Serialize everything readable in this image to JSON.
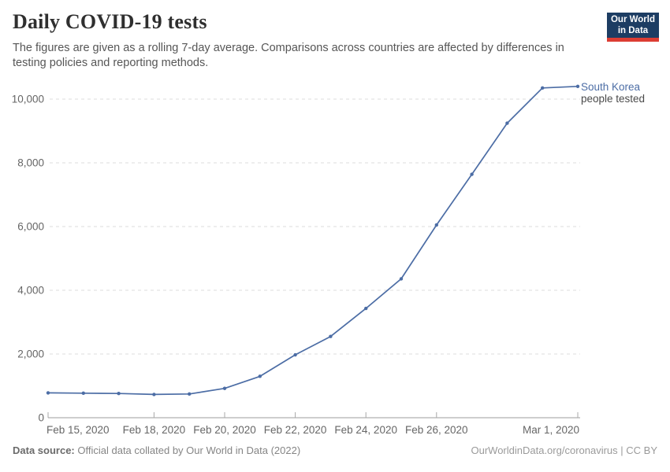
{
  "header": {
    "title": "Daily COVID-19 tests",
    "subtitle_lines": [
      "The figures are given as a rolling 7-day average. Comparisons across countries are affected by differences in",
      "testing policies and reporting methods."
    ],
    "logo": {
      "line1": "Our World",
      "line2": "in Data"
    }
  },
  "colors": {
    "line": "#4c6da5",
    "series_label": "#4c6da5",
    "series_sublabel": "#4a4a4a",
    "grid": "#dcdcdc",
    "axis": "#9e9e9e",
    "tick": "#a8a8a8",
    "tick_label": "#666666",
    "logo_bg": "#1d3d63",
    "logo_stripe": "#dc3d33"
  },
  "chart_data": {
    "type": "line",
    "title": "Daily COVID-19 tests",
    "x": [
      "Feb 15, 2020",
      "Feb 16, 2020",
      "Feb 17, 2020",
      "Feb 18, 2020",
      "Feb 19, 2020",
      "Feb 20, 2020",
      "Feb 21, 2020",
      "Feb 22, 2020",
      "Feb 23, 2020",
      "Feb 24, 2020",
      "Feb 25, 2020",
      "Feb 26, 2020",
      "Feb 27, 2020",
      "Feb 28, 2020",
      "Feb 29, 2020",
      "Mar 1, 2020"
    ],
    "series": [
      {
        "name": "South Korea",
        "sublabel": "people tested",
        "values": [
          780,
          770,
          760,
          730,
          745,
          920,
          1300,
          1975,
          2550,
          3430,
          4360,
          6050,
          7640,
          9245,
          10350,
          10400
        ]
      }
    ],
    "x_ticks": [
      {
        "index": 0,
        "label": "Feb 15, 2020"
      },
      {
        "index": 3,
        "label": "Feb 18, 2020"
      },
      {
        "index": 5,
        "label": "Feb 20, 2020"
      },
      {
        "index": 7,
        "label": "Feb 22, 2020"
      },
      {
        "index": 9,
        "label": "Feb 24, 2020"
      },
      {
        "index": 11,
        "label": "Feb 26, 2020"
      },
      {
        "index": 15,
        "label": "Mar 1, 2020"
      }
    ],
    "y_ticks": [
      {
        "value": 0,
        "label": "0"
      },
      {
        "value": 2000,
        "label": "2,000"
      },
      {
        "value": 4000,
        "label": "4,000"
      },
      {
        "value": 6000,
        "label": "6,000"
      },
      {
        "value": 8000,
        "label": "8,000"
      },
      {
        "value": 10000,
        "label": "10,000"
      }
    ],
    "ylim": [
      0,
      10750
    ],
    "grid": "horizontal-dashed",
    "legend_position": "end-of-line-label"
  },
  "footer": {
    "source_label": "Data source:",
    "source_text": "Official data collated by Our World in Data (2022)",
    "right_text": "OurWorldinData.org/coronavirus | CC BY"
  }
}
